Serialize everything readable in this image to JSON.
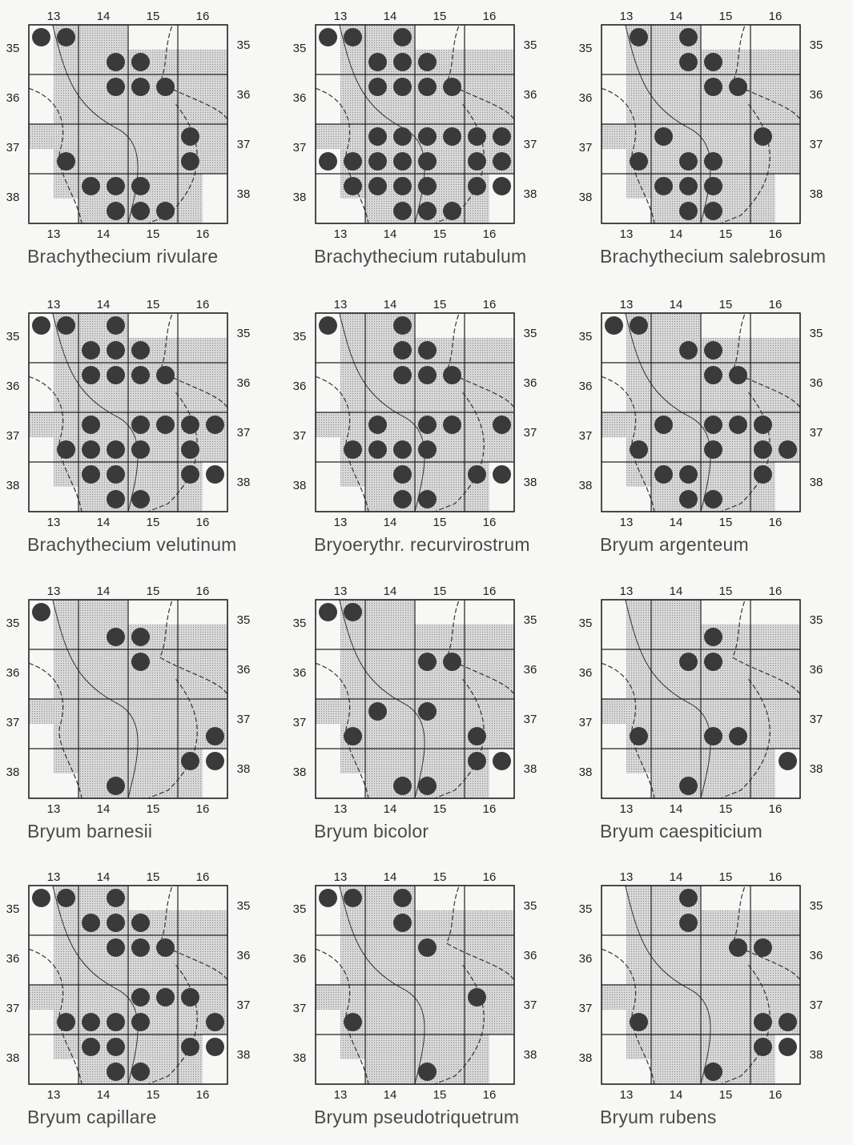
{
  "grid": {
    "columns": [
      "13",
      "14",
      "15",
      "16"
    ],
    "rows": [
      "35",
      "36",
      "37",
      "38"
    ]
  },
  "colors": {
    "background": "#f7f7f5",
    "frame": "#222222",
    "shade": "#d9d9d9",
    "dot": "#3a3a3a",
    "border_line": "#333333"
  },
  "shading_quadrants": [
    [
      0,
      1
    ],
    [
      0,
      2
    ],
    [
      0,
      3
    ],
    [
      1,
      1
    ],
    [
      1,
      2
    ],
    [
      1,
      3
    ],
    [
      1,
      4
    ],
    [
      1,
      5
    ],
    [
      1,
      6
    ],
    [
      1,
      7
    ],
    [
      2,
      1
    ],
    [
      2,
      2
    ],
    [
      2,
      3
    ],
    [
      2,
      4
    ],
    [
      2,
      5
    ],
    [
      2,
      6
    ],
    [
      2,
      7
    ],
    [
      3,
      1
    ],
    [
      3,
      2
    ],
    [
      3,
      3
    ],
    [
      3,
      4
    ],
    [
      3,
      5
    ],
    [
      3,
      6
    ],
    [
      3,
      7
    ],
    [
      4,
      0
    ],
    [
      4,
      1
    ],
    [
      4,
      2
    ],
    [
      4,
      3
    ],
    [
      4,
      4
    ],
    [
      4,
      5
    ],
    [
      4,
      6
    ],
    [
      4,
      7
    ],
    [
      5,
      1
    ],
    [
      5,
      2
    ],
    [
      5,
      3
    ],
    [
      5,
      4
    ],
    [
      5,
      5
    ],
    [
      5,
      6
    ],
    [
      5,
      7
    ],
    [
      6,
      1
    ],
    [
      6,
      2
    ],
    [
      6,
      3
    ],
    [
      6,
      4
    ],
    [
      6,
      5
    ],
    [
      6,
      6
    ],
    [
      7,
      2
    ],
    [
      7,
      3
    ],
    [
      7,
      4
    ],
    [
      7,
      5
    ],
    [
      7,
      6
    ]
  ],
  "maps": [
    {
      "species": "Brachythecium rivulare",
      "records": [
        [
          0,
          0
        ],
        [
          0,
          1
        ],
        [
          1,
          3
        ],
        [
          1,
          4
        ],
        [
          2,
          3
        ],
        [
          2,
          4
        ],
        [
          2,
          5
        ],
        [
          4,
          6
        ],
        [
          5,
          1
        ],
        [
          5,
          6
        ],
        [
          6,
          2
        ],
        [
          6,
          3
        ],
        [
          6,
          4
        ],
        [
          7,
          3
        ],
        [
          7,
          4
        ],
        [
          7,
          5
        ]
      ]
    },
    {
      "species": "Brachythecium rutabulum",
      "records": [
        [
          0,
          0
        ],
        [
          0,
          1
        ],
        [
          0,
          3
        ],
        [
          1,
          2
        ],
        [
          1,
          3
        ],
        [
          1,
          4
        ],
        [
          2,
          2
        ],
        [
          2,
          3
        ],
        [
          2,
          4
        ],
        [
          2,
          5
        ],
        [
          4,
          2
        ],
        [
          4,
          3
        ],
        [
          4,
          4
        ],
        [
          4,
          5
        ],
        [
          4,
          6
        ],
        [
          4,
          7
        ],
        [
          5,
          0
        ],
        [
          5,
          1
        ],
        [
          5,
          2
        ],
        [
          5,
          3
        ],
        [
          5,
          4
        ],
        [
          5,
          6
        ],
        [
          5,
          7
        ],
        [
          6,
          1
        ],
        [
          6,
          2
        ],
        [
          6,
          3
        ],
        [
          6,
          4
        ],
        [
          6,
          6
        ],
        [
          6,
          7
        ],
        [
          7,
          3
        ],
        [
          7,
          4
        ],
        [
          7,
          5
        ]
      ]
    },
    {
      "species": "Brachythecium salebrosum",
      "records": [
        [
          0,
          1
        ],
        [
          0,
          3
        ],
        [
          1,
          3
        ],
        [
          1,
          4
        ],
        [
          2,
          4
        ],
        [
          2,
          5
        ],
        [
          4,
          2
        ],
        [
          4,
          6
        ],
        [
          5,
          1
        ],
        [
          5,
          3
        ],
        [
          5,
          4
        ],
        [
          6,
          2
        ],
        [
          6,
          3
        ],
        [
          6,
          4
        ],
        [
          7,
          3
        ],
        [
          7,
          4
        ]
      ]
    },
    {
      "species": "Brachythecium velutinum",
      "records": [
        [
          0,
          0
        ],
        [
          0,
          1
        ],
        [
          0,
          3
        ],
        [
          1,
          2
        ],
        [
          1,
          3
        ],
        [
          1,
          4
        ],
        [
          2,
          2
        ],
        [
          2,
          3
        ],
        [
          2,
          4
        ],
        [
          2,
          5
        ],
        [
          4,
          2
        ],
        [
          4,
          4
        ],
        [
          4,
          5
        ],
        [
          4,
          6
        ],
        [
          4,
          7
        ],
        [
          5,
          1
        ],
        [
          5,
          2
        ],
        [
          5,
          3
        ],
        [
          5,
          4
        ],
        [
          5,
          6
        ],
        [
          6,
          2
        ],
        [
          6,
          3
        ],
        [
          6,
          6
        ],
        [
          6,
          7
        ],
        [
          7,
          3
        ],
        [
          7,
          4
        ]
      ]
    },
    {
      "species": "Bryoerythr. recurvirostrum",
      "records": [
        [
          0,
          0
        ],
        [
          0,
          3
        ],
        [
          1,
          3
        ],
        [
          1,
          4
        ],
        [
          2,
          3
        ],
        [
          2,
          4
        ],
        [
          2,
          5
        ],
        [
          4,
          2
        ],
        [
          4,
          4
        ],
        [
          4,
          5
        ],
        [
          4,
          7
        ],
        [
          5,
          1
        ],
        [
          5,
          2
        ],
        [
          5,
          3
        ],
        [
          5,
          4
        ],
        [
          6,
          3
        ],
        [
          6,
          6
        ],
        [
          6,
          7
        ],
        [
          7,
          3
        ],
        [
          7,
          4
        ]
      ]
    },
    {
      "species": "Bryum argenteum",
      "records": [
        [
          0,
          0
        ],
        [
          0,
          1
        ],
        [
          1,
          3
        ],
        [
          1,
          4
        ],
        [
          2,
          4
        ],
        [
          2,
          5
        ],
        [
          4,
          2
        ],
        [
          4,
          4
        ],
        [
          4,
          5
        ],
        [
          4,
          6
        ],
        [
          5,
          1
        ],
        [
          5,
          4
        ],
        [
          5,
          6
        ],
        [
          5,
          7
        ],
        [
          6,
          2
        ],
        [
          6,
          3
        ],
        [
          6,
          6
        ],
        [
          7,
          3
        ],
        [
          7,
          4
        ]
      ]
    },
    {
      "species": "Bryum barnesii",
      "records": [
        [
          0,
          0
        ],
        [
          1,
          3
        ],
        [
          1,
          4
        ],
        [
          2,
          4
        ],
        [
          5,
          7
        ],
        [
          6,
          6
        ],
        [
          6,
          7
        ],
        [
          7,
          3
        ]
      ]
    },
    {
      "species": "Bryum bicolor",
      "records": [
        [
          0,
          0
        ],
        [
          0,
          1
        ],
        [
          2,
          4
        ],
        [
          2,
          5
        ],
        [
          4,
          2
        ],
        [
          4,
          4
        ],
        [
          5,
          1
        ],
        [
          5,
          6
        ],
        [
          6,
          6
        ],
        [
          6,
          7
        ],
        [
          7,
          3
        ],
        [
          7,
          4
        ]
      ]
    },
    {
      "species": "Bryum caespiticium",
      "records": [
        [
          1,
          4
        ],
        [
          2,
          3
        ],
        [
          2,
          4
        ],
        [
          5,
          1
        ],
        [
          5,
          4
        ],
        [
          5,
          5
        ],
        [
          6,
          7
        ],
        [
          7,
          3
        ]
      ]
    },
    {
      "species": "Bryum capillare",
      "records": [
        [
          0,
          0
        ],
        [
          0,
          1
        ],
        [
          0,
          3
        ],
        [
          1,
          2
        ],
        [
          1,
          3
        ],
        [
          1,
          4
        ],
        [
          2,
          3
        ],
        [
          2,
          4
        ],
        [
          2,
          5
        ],
        [
          4,
          4
        ],
        [
          4,
          5
        ],
        [
          4,
          6
        ],
        [
          5,
          1
        ],
        [
          5,
          2
        ],
        [
          5,
          3
        ],
        [
          5,
          4
        ],
        [
          5,
          7
        ],
        [
          6,
          2
        ],
        [
          6,
          3
        ],
        [
          6,
          6
        ],
        [
          6,
          7
        ],
        [
          7,
          3
        ],
        [
          7,
          4
        ]
      ]
    },
    {
      "species": "Bryum pseudotriquetrum",
      "records": [
        [
          0,
          0
        ],
        [
          0,
          1
        ],
        [
          0,
          3
        ],
        [
          1,
          3
        ],
        [
          2,
          4
        ],
        [
          4,
          6
        ],
        [
          5,
          1
        ],
        [
          7,
          4
        ]
      ]
    },
    {
      "species": "Bryum rubens",
      "records": [
        [
          0,
          3
        ],
        [
          1,
          3
        ],
        [
          2,
          5
        ],
        [
          2,
          6
        ],
        [
          5,
          1
        ],
        [
          5,
          6
        ],
        [
          5,
          7
        ],
        [
          6,
          6
        ],
        [
          6,
          7
        ],
        [
          7,
          4
        ]
      ]
    }
  ]
}
